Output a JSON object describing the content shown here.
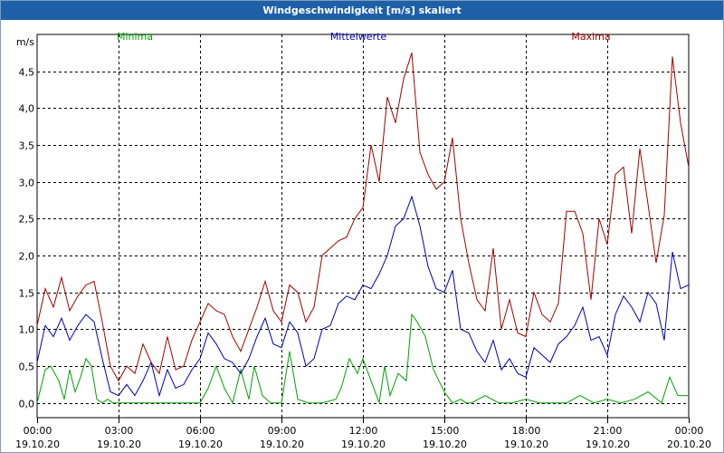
{
  "window": {
    "title": "Windgeschwindigkeit [m/s] skaliert"
  },
  "chart_data": {
    "type": "line",
    "title": "Windgeschwindigkeit [m/s] skaliert",
    "ylabel": "m/s",
    "xlabel": "",
    "ylim": [
      -0.2,
      5.0
    ],
    "xlim": [
      0,
      24
    ],
    "grid": true,
    "legend_placement": "top",
    "y_ticks": [
      {
        "v": 0.0,
        "label": "0,0"
      },
      {
        "v": 0.5,
        "label": "0,5"
      },
      {
        "v": 1.0,
        "label": "1,0"
      },
      {
        "v": 1.5,
        "label": "1,5"
      },
      {
        "v": 2.0,
        "label": "2,0"
      },
      {
        "v": 2.5,
        "label": "2,5"
      },
      {
        "v": 3.0,
        "label": "3,0"
      },
      {
        "v": 3.5,
        "label": "3,5"
      },
      {
        "v": 4.0,
        "label": "4,0"
      },
      {
        "v": 4.5,
        "label": "4,5"
      }
    ],
    "x_ticks": [
      {
        "v": 0,
        "time": "00:00",
        "date": "19.10.20"
      },
      {
        "v": 3,
        "time": "03:00",
        "date": "19.10.20"
      },
      {
        "v": 6,
        "time": "06:00",
        "date": "19.10.20"
      },
      {
        "v": 9,
        "time": "09:00",
        "date": "19.10.20"
      },
      {
        "v": 12,
        "time": "12:00",
        "date": "19.10.20"
      },
      {
        "v": 15,
        "time": "15:00",
        "date": "19.10.20"
      },
      {
        "v": 18,
        "time": "18:00",
        "date": "19.10.20"
      },
      {
        "v": 21,
        "time": "21:00",
        "date": "19.10.20"
      },
      {
        "v": 24,
        "time": "00:00",
        "date": "20.10.20"
      }
    ],
    "series": [
      {
        "name": "Minima",
        "color": "#00a000",
        "x": [
          0,
          0.3,
          0.5,
          0.8,
          1.0,
          1.2,
          1.4,
          1.6,
          1.8,
          2.0,
          2.2,
          2.4,
          2.6,
          2.8,
          3.0,
          3.5,
          4.0,
          5.0,
          6.0,
          6.3,
          6.6,
          6.9,
          7.2,
          7.5,
          7.8,
          8.0,
          8.3,
          8.6,
          8.8,
          9.0,
          9.3,
          9.6,
          10.0,
          10.5,
          11.0,
          11.2,
          11.5,
          11.8,
          12.0,
          12.3,
          12.6,
          12.8,
          13.0,
          13.3,
          13.6,
          13.8,
          14.0,
          14.3,
          14.6,
          14.8,
          15.0,
          15.3,
          15.6,
          15.8,
          16.0,
          16.5,
          17.0,
          17.5,
          18.0,
          18.5,
          19.0,
          19.5,
          20.0,
          20.5,
          21.0,
          21.5,
          22.0,
          22.5,
          23.0,
          23.3,
          23.6,
          24.0
        ],
        "y": [
          0.0,
          0.45,
          0.5,
          0.3,
          0.05,
          0.45,
          0.15,
          0.35,
          0.6,
          0.5,
          0.05,
          0.0,
          0.05,
          0.0,
          0.0,
          0.0,
          0.0,
          0.0,
          0.0,
          0.2,
          0.5,
          0.2,
          0.0,
          0.45,
          0.05,
          0.5,
          0.1,
          0.0,
          0.0,
          0.0,
          0.7,
          0.05,
          0.0,
          0.0,
          0.05,
          0.2,
          0.6,
          0.4,
          0.6,
          0.3,
          0.0,
          0.5,
          0.1,
          0.4,
          0.3,
          1.2,
          1.1,
          0.9,
          0.45,
          0.3,
          0.15,
          0.0,
          0.05,
          0.0,
          0.0,
          0.1,
          0.0,
          0.0,
          0.05,
          0.0,
          0.0,
          0.0,
          0.1,
          0.0,
          0.05,
          0.0,
          0.05,
          0.15,
          0.0,
          0.35,
          0.1,
          0.1
        ]
      },
      {
        "name": "Mittelwerte",
        "color": "#0000b4",
        "x": [
          0,
          0.3,
          0.6,
          0.9,
          1.2,
          1.5,
          1.8,
          2.1,
          2.4,
          2.7,
          3.0,
          3.3,
          3.6,
          3.9,
          4.2,
          4.5,
          4.8,
          5.1,
          5.4,
          5.7,
          6.0,
          6.3,
          6.6,
          6.9,
          7.2,
          7.5,
          7.8,
          8.1,
          8.4,
          8.7,
          9.0,
          9.3,
          9.6,
          9.9,
          10.2,
          10.5,
          10.8,
          11.1,
          11.4,
          11.7,
          12.0,
          12.3,
          12.6,
          12.9,
          13.2,
          13.5,
          13.8,
          14.1,
          14.4,
          14.7,
          15.0,
          15.3,
          15.6,
          15.9,
          16.2,
          16.5,
          16.8,
          17.1,
          17.4,
          17.7,
          18.0,
          18.3,
          18.6,
          18.9,
          19.2,
          19.5,
          19.8,
          20.1,
          20.4,
          20.7,
          21.0,
          21.3,
          21.6,
          21.9,
          22.2,
          22.5,
          22.8,
          23.1,
          23.4,
          23.7,
          24.0
        ],
        "y": [
          0.55,
          1.05,
          0.9,
          1.15,
          0.85,
          1.05,
          1.2,
          1.1,
          0.6,
          0.15,
          0.1,
          0.25,
          0.1,
          0.3,
          0.55,
          0.1,
          0.45,
          0.2,
          0.25,
          0.45,
          0.6,
          0.95,
          0.8,
          0.6,
          0.55,
          0.4,
          0.6,
          0.9,
          1.15,
          0.8,
          0.75,
          1.1,
          0.95,
          0.5,
          0.6,
          1.0,
          1.05,
          1.35,
          1.45,
          1.4,
          1.6,
          1.55,
          1.75,
          2.0,
          2.4,
          2.5,
          2.8,
          2.4,
          1.85,
          1.55,
          1.5,
          1.8,
          1.0,
          0.95,
          0.7,
          0.55,
          0.85,
          0.45,
          0.6,
          0.4,
          0.35,
          0.75,
          0.65,
          0.55,
          0.8,
          0.9,
          1.05,
          1.3,
          0.85,
          0.9,
          0.65,
          1.2,
          1.45,
          1.3,
          1.1,
          1.5,
          1.35,
          0.85,
          2.05,
          1.55,
          1.6
        ]
      },
      {
        "name": "Maxima",
        "color": "#a00000",
        "x": [
          0,
          0.3,
          0.6,
          0.9,
          1.2,
          1.5,
          1.8,
          2.1,
          2.4,
          2.7,
          3.0,
          3.3,
          3.6,
          3.9,
          4.2,
          4.5,
          4.8,
          5.1,
          5.4,
          5.7,
          6.0,
          6.3,
          6.6,
          6.9,
          7.2,
          7.5,
          7.8,
          8.1,
          8.4,
          8.7,
          9.0,
          9.3,
          9.6,
          9.9,
          10.2,
          10.5,
          10.8,
          11.1,
          11.4,
          11.7,
          12.0,
          12.3,
          12.6,
          12.9,
          13.2,
          13.5,
          13.8,
          14.1,
          14.4,
          14.7,
          15.0,
          15.3,
          15.6,
          15.9,
          16.2,
          16.5,
          16.8,
          17.1,
          17.4,
          17.7,
          18.0,
          18.3,
          18.6,
          18.9,
          19.2,
          19.5,
          19.8,
          20.1,
          20.4,
          20.7,
          21.0,
          21.3,
          21.6,
          21.9,
          22.2,
          22.5,
          22.8,
          23.1,
          23.4,
          23.7,
          24.0
        ],
        "y": [
          1.05,
          1.55,
          1.3,
          1.7,
          1.25,
          1.45,
          1.6,
          1.65,
          1.1,
          0.5,
          0.3,
          0.5,
          0.4,
          0.8,
          0.55,
          0.4,
          0.9,
          0.45,
          0.5,
          0.85,
          1.1,
          1.35,
          1.25,
          1.2,
          0.9,
          0.7,
          1.0,
          1.3,
          1.65,
          1.25,
          1.1,
          1.6,
          1.5,
          1.1,
          1.3,
          2.0,
          2.1,
          2.2,
          2.25,
          2.5,
          2.65,
          3.5,
          3.0,
          4.15,
          3.8,
          4.4,
          4.75,
          3.4,
          3.1,
          2.9,
          3.0,
          3.6,
          2.5,
          1.9,
          1.4,
          1.25,
          2.1,
          1.0,
          1.4,
          0.95,
          0.9,
          1.5,
          1.2,
          1.1,
          1.35,
          2.6,
          2.6,
          2.3,
          1.4,
          2.5,
          2.15,
          3.1,
          3.2,
          2.3,
          3.45,
          2.7,
          1.9,
          2.55,
          4.7,
          3.8,
          3.2
        ]
      }
    ]
  }
}
